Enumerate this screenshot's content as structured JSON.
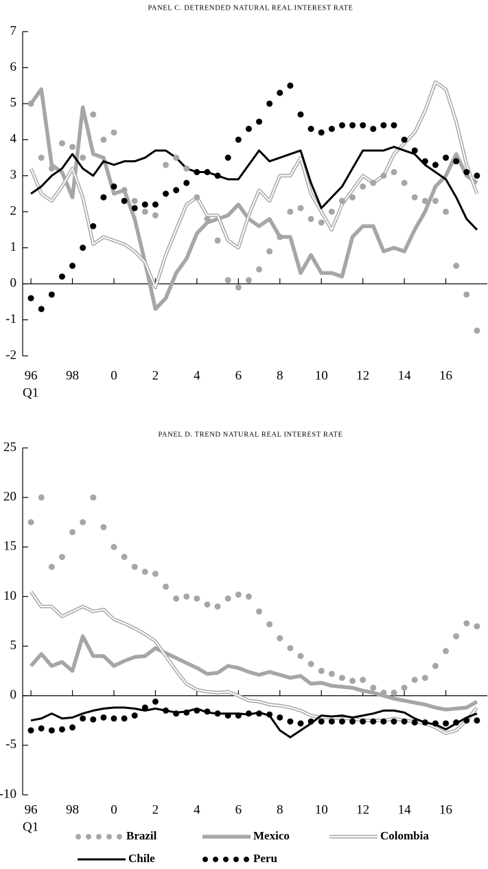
{
  "chart_data": [
    {
      "type": "line",
      "title": "PANEL C. DETRENDED NATURAL REAL INTEREST RATE",
      "xlabel": "Q1",
      "x": [
        1996,
        1996.5,
        1997,
        1997.5,
        1998,
        1998.5,
        1999,
        1999.5,
        2000,
        2000.5,
        2001,
        2001.5,
        2002,
        2002.5,
        2003,
        2003.5,
        2004,
        2004.5,
        2005,
        2005.5,
        2006,
        2006.5,
        2007,
        2007.5,
        2008,
        2008.5,
        2009,
        2009.5,
        2010,
        2010.5,
        2011,
        2011.5,
        2012,
        2012.5,
        2013,
        2013.5,
        2014,
        2014.5,
        2015,
        2015.5,
        2016,
        2016.5,
        2017,
        2017.5
      ],
      "xlim": [
        1995.6,
        2018
      ],
      "ylim": [
        -2,
        7
      ],
      "yticks": [
        -2,
        -1,
        0,
        1,
        2,
        3,
        4,
        5,
        6,
        7
      ],
      "xticks": [
        {
          "value": 1996,
          "label": "96"
        },
        {
          "value": 1998,
          "label": "98"
        },
        {
          "value": 2000,
          "label": "0"
        },
        {
          "value": 2002,
          "label": "2"
        },
        {
          "value": 2004,
          "label": "4"
        },
        {
          "value": 2006,
          "label": "6"
        },
        {
          "value": 2008,
          "label": "8"
        },
        {
          "value": 2010,
          "label": "10"
        },
        {
          "value": 2012,
          "label": "12"
        },
        {
          "value": 2014,
          "label": "14"
        },
        {
          "value": 2016,
          "label": "16"
        }
      ],
      "series": [
        {
          "name": "Brazil",
          "color": "#a6a6a6",
          "style": "dots",
          "values": [
            5.0,
            3.5,
            3.2,
            3.9,
            3.8,
            3.5,
            4.7,
            4.0,
            4.2,
            2.6,
            2.3,
            2.0,
            1.9,
            3.3,
            3.5,
            3.2,
            2.4,
            1.8,
            1.2,
            0.1,
            -0.1,
            0.1,
            0.4,
            0.9,
            1.3,
            2.0,
            2.1,
            1.8,
            1.7,
            2.0,
            2.3,
            2.4,
            2.7,
            2.8,
            3.0,
            3.1,
            2.8,
            2.4,
            2.3,
            2.3,
            2.0,
            0.5,
            -0.3,
            -1.3
          ]
        },
        {
          "name": "Mexico",
          "color": "#a6a6a6",
          "style": "thick",
          "values": [
            5.0,
            5.4,
            3.3,
            3.1,
            2.4,
            4.9,
            3.6,
            3.5,
            2.5,
            2.6,
            1.8,
            0.6,
            -0.7,
            -0.4,
            0.3,
            0.7,
            1.4,
            1.7,
            1.8,
            1.9,
            2.2,
            1.8,
            1.6,
            1.8,
            1.3,
            1.3,
            0.3,
            0.8,
            0.3,
            0.3,
            0.2,
            1.3,
            1.6,
            1.6,
            0.9,
            1.0,
            0.9,
            1.5,
            2.0,
            2.7,
            3.0,
            3.6,
            3.0,
            2.8
          ]
        },
        {
          "name": "Colombia",
          "color": "#a6a6a6",
          "style": "double",
          "values": [
            3.2,
            2.5,
            2.3,
            2.7,
            3.2,
            2.4,
            1.1,
            1.3,
            1.2,
            1.1,
            0.9,
            0.6,
            -0.1,
            0.8,
            1.5,
            2.2,
            2.4,
            1.9,
            1.9,
            1.2,
            1.0,
            1.9,
            2.6,
            2.3,
            3.0,
            3.0,
            3.5,
            2.5,
            2.0,
            1.5,
            2.2,
            2.6,
            3.0,
            2.8,
            3.0,
            3.6,
            3.9,
            4.2,
            4.8,
            5.6,
            5.4,
            4.5,
            3.3,
            2.5
          ]
        },
        {
          "name": "Chile",
          "color": "#000000",
          "style": "line",
          "values": [
            2.5,
            2.7,
            3.0,
            3.2,
            3.6,
            3.2,
            3.0,
            3.4,
            3.3,
            3.4,
            3.4,
            3.5,
            3.7,
            3.7,
            3.5,
            3.2,
            3.1,
            3.1,
            3.0,
            2.9,
            2.9,
            3.3,
            3.7,
            3.4,
            3.5,
            3.6,
            3.7,
            2.8,
            2.1,
            2.4,
            2.7,
            3.2,
            3.7,
            3.7,
            3.7,
            3.8,
            3.7,
            3.6,
            3.3,
            3.1,
            2.9,
            2.4,
            1.8,
            1.5
          ]
        },
        {
          "name": "Peru",
          "color": "#000000",
          "style": "dots",
          "values": [
            -0.4,
            -0.7,
            -0.3,
            0.2,
            0.5,
            1.0,
            1.6,
            2.4,
            2.7,
            2.3,
            2.1,
            2.2,
            2.2,
            2.5,
            2.6,
            2.8,
            3.1,
            3.1,
            3.0,
            3.5,
            4.0,
            4.3,
            4.5,
            5.0,
            5.3,
            5.5,
            4.7,
            4.3,
            4.2,
            4.3,
            4.4,
            4.4,
            4.4,
            4.3,
            4.4,
            4.4,
            4.0,
            3.7,
            3.4,
            3.3,
            3.5,
            3.4,
            3.1,
            3.0
          ]
        }
      ]
    },
    {
      "type": "line",
      "title": "PANEL D. TREND NATURAL REAL INTEREST RATE",
      "xlabel": "Q1",
      "x": [
        1996,
        1996.5,
        1997,
        1997.5,
        1998,
        1998.5,
        1999,
        1999.5,
        2000,
        2000.5,
        2001,
        2001.5,
        2002,
        2002.5,
        2003,
        2003.5,
        2004,
        2004.5,
        2005,
        2005.5,
        2006,
        2006.5,
        2007,
        2007.5,
        2008,
        2008.5,
        2009,
        2009.5,
        2010,
        2010.5,
        2011,
        2011.5,
        2012,
        2012.5,
        2013,
        2013.5,
        2014,
        2014.5,
        2015,
        2015.5,
        2016,
        2016.5,
        2017,
        2017.5
      ],
      "xlim": [
        1995.6,
        2018
      ],
      "ylim": [
        -10,
        25
      ],
      "yticks": [
        -10,
        -5,
        0,
        5,
        10,
        15,
        20,
        25
      ],
      "xticks": [
        {
          "value": 1996,
          "label": "96"
        },
        {
          "value": 1998,
          "label": "98"
        },
        {
          "value": 2000,
          "label": "0"
        },
        {
          "value": 2002,
          "label": "2"
        },
        {
          "value": 2004,
          "label": "4"
        },
        {
          "value": 2006,
          "label": "6"
        },
        {
          "value": 2008,
          "label": "8"
        },
        {
          "value": 2010,
          "label": "10"
        },
        {
          "value": 2012,
          "label": "12"
        },
        {
          "value": 2014,
          "label": "14"
        },
        {
          "value": 2016,
          "label": "16"
        }
      ],
      "series": [
        {
          "name": "Brazil",
          "color": "#a6a6a6",
          "style": "dots",
          "values": [
            17.5,
            20,
            13,
            14,
            16.5,
            17.5,
            20,
            17,
            15,
            14,
            13,
            12.5,
            12.3,
            11,
            9.8,
            10,
            9.8,
            9.2,
            9.0,
            9.8,
            10.2,
            10,
            8.5,
            7.2,
            5.8,
            4.8,
            4,
            3.2,
            2.5,
            2.2,
            1.8,
            1.5,
            1.6,
            0.8,
            0.3,
            0.3,
            0.8,
            1.6,
            1.8,
            3.0,
            4.5,
            6.0,
            7.3,
            7.0
          ]
        },
        {
          "name": "Mexico",
          "color": "#a6a6a6",
          "style": "thick",
          "values": [
            3,
            4.2,
            3,
            3.4,
            2.5,
            6,
            4,
            4,
            3,
            3.5,
            3.9,
            4,
            4.8,
            4.3,
            3.8,
            3.3,
            2.8,
            2.2,
            2.3,
            3,
            2.8,
            2.4,
            2.1,
            2.4,
            2.1,
            1.8,
            2.0,
            1.2,
            1.3,
            1.0,
            0.9,
            0.8,
            0.5,
            0.3,
            0,
            -0.3,
            -0.5,
            -0.7,
            -0.9,
            -1.2,
            -1.4,
            -1.3,
            -1.2,
            -0.6
          ]
        },
        {
          "name": "Colombia",
          "color": "#a6a6a6",
          "style": "double",
          "values": [
            10.5,
            9,
            9,
            8,
            8.5,
            9,
            8.5,
            8.7,
            7.7,
            7.3,
            6.8,
            6.2,
            5.5,
            4,
            2.5,
            1.2,
            0.6,
            0.4,
            0.3,
            0.4,
            0,
            -0.5,
            -0.6,
            -0.9,
            -1.0,
            -1.2,
            -1.5,
            -2.0,
            -2.2,
            -2.2,
            -2.3,
            -2.3,
            -2.5,
            -2.5,
            -2.5,
            -2.3,
            -2.5,
            -2.6,
            -2.8,
            -3.2,
            -3.8,
            -3.5,
            -2.5,
            -1.2
          ]
        },
        {
          "name": "Chile",
          "color": "#000000",
          "style": "line",
          "values": [
            -2.5,
            -2.3,
            -1.8,
            -2.3,
            -2.2,
            -1.8,
            -1.5,
            -1.3,
            -1.2,
            -1.2,
            -1.3,
            -1.5,
            -1.3,
            -1.5,
            -1.7,
            -1.6,
            -1.3,
            -1.7,
            -1.8,
            -1.8,
            -1.8,
            -1.9,
            -1.7,
            -2.0,
            -3.5,
            -4.2,
            -3.5,
            -2.8,
            -2.0,
            -2.1,
            -2.0,
            -2.2,
            -2.0,
            -1.8,
            -1.5,
            -1.5,
            -1.7,
            -2.3,
            -2.7,
            -2.9,
            -3.4,
            -2.8,
            -2.2,
            -1.8
          ]
        },
        {
          "name": "Peru",
          "color": "#000000",
          "style": "dots",
          "values": [
            -3.5,
            -3.3,
            -3.5,
            -3.4,
            -3.2,
            -2.3,
            -2.4,
            -2.2,
            -2.3,
            -2.3,
            -2.0,
            -1.2,
            -0.6,
            -1.5,
            -1.8,
            -1.7,
            -1.5,
            -1.6,
            -1.8,
            -2.0,
            -2.0,
            -1.8,
            -1.8,
            -1.9,
            -2.2,
            -2.6,
            -2.8,
            -2.6,
            -2.6,
            -2.6,
            -2.6,
            -2.6,
            -2.6,
            -2.6,
            -2.6,
            -2.6,
            -2.6,
            -2.7,
            -2.7,
            -2.8,
            -2.8,
            -2.7,
            -2.5,
            -2.5
          ]
        }
      ]
    }
  ]
}
